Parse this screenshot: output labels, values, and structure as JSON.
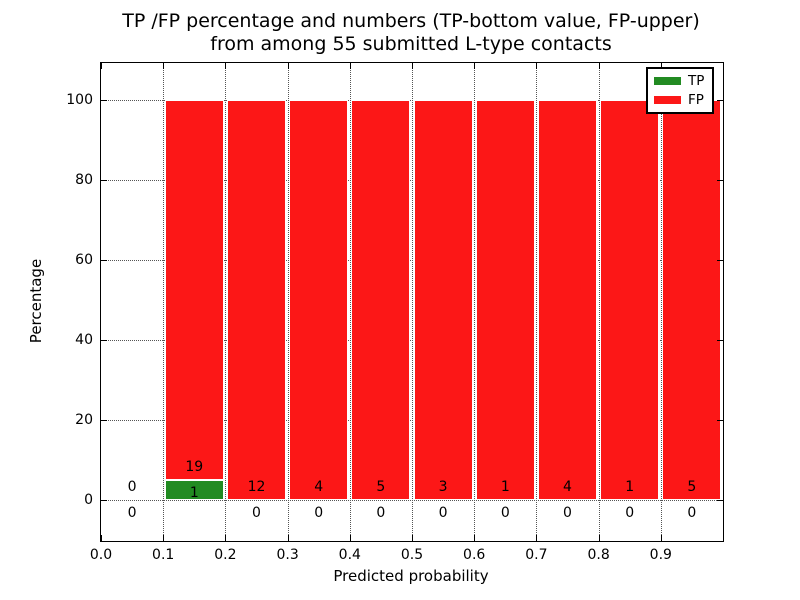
{
  "figure": {
    "title_line1": "TP /FP percentage and numbers (TP-bottom value, FP-upper)",
    "title_line2": "from among 55 submitted L-type contacts",
    "background": "#ffffff"
  },
  "chart_data": {
    "type": "bar",
    "subtype": "stacked_percentage_histogram",
    "title": "TP /FP percentage and numbers (TP-bottom value, FP-upper) from among 55 submitted L-type contacts",
    "xlabel": "Predicted probability",
    "ylabel": "Percentage",
    "total_submitted_contacts": 55,
    "contact_type": "L-type",
    "annotation_rule": "TP-bottom value, FP-upper",
    "bin_edges": [
      0.0,
      0.1,
      0.2,
      0.3,
      0.4,
      0.5,
      0.6,
      0.7,
      0.8,
      0.9,
      1.0
    ],
    "x_tick_values": [
      0.0,
      0.1,
      0.2,
      0.3,
      0.4,
      0.5,
      0.6,
      0.7,
      0.8,
      0.9
    ],
    "x_tick_labels": [
      "0.0",
      "0.1",
      "0.2",
      "0.3",
      "0.4",
      "0.5",
      "0.6",
      "0.7",
      "0.8",
      "0.9"
    ],
    "y_ticks": [
      0,
      20,
      40,
      60,
      80,
      100
    ],
    "xlim": [
      0.0,
      1.0
    ],
    "ylim": [
      -10.25,
      109.25
    ],
    "grid": {
      "visible": true,
      "style": "dotted",
      "color": "#555555"
    },
    "bar_edge_color": "#ffffff",
    "legend": {
      "position": "upper-right",
      "entries": [
        {
          "label": "TP",
          "color": "#228b22"
        },
        {
          "label": "FP",
          "color": "#fc1717"
        }
      ]
    },
    "series": [
      {
        "name": "TP",
        "color": "#228b22",
        "counts": [
          0,
          1,
          0,
          0,
          0,
          0,
          0,
          0,
          0,
          0
        ],
        "percentages": [
          0,
          5,
          0,
          0,
          0,
          0,
          0,
          0,
          0,
          0
        ]
      },
      {
        "name": "FP",
        "color": "#fc1717",
        "counts": [
          0,
          19,
          12,
          4,
          5,
          3,
          1,
          4,
          1,
          5
        ],
        "percentages": [
          0,
          95,
          100,
          100,
          100,
          100,
          100,
          100,
          100,
          100
        ]
      }
    ]
  }
}
